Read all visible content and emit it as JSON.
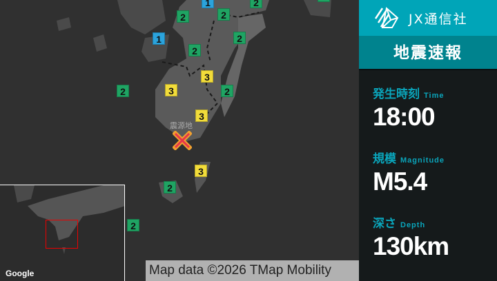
{
  "brand": {
    "name": "JX通信社"
  },
  "header": {
    "title": "地震速報"
  },
  "info": {
    "time": {
      "label_ja": "発生時刻",
      "label_en": "Time",
      "value": "18:00"
    },
    "magnitude": {
      "label_ja": "規模",
      "label_en": "Magnitude",
      "value": "M5.4"
    },
    "depth": {
      "label_ja": "深さ",
      "label_en": "Depth",
      "value": "130km"
    }
  },
  "map": {
    "epicenter_label": "震源地",
    "intensities": [
      "1",
      "2",
      "2",
      "2",
      "2",
      "1",
      "2",
      "2",
      "3",
      "2",
      "3",
      "2",
      "3",
      "3",
      "2",
      "2"
    ],
    "intensity_colors": {
      "1": "#2ba3dc",
      "2": "#1fa463",
      "3": "#f2dc3a"
    },
    "epicenter_color": "#e8354a",
    "google_logo": "Google",
    "attribution": "Map data ©2026 TMap Mobility"
  }
}
